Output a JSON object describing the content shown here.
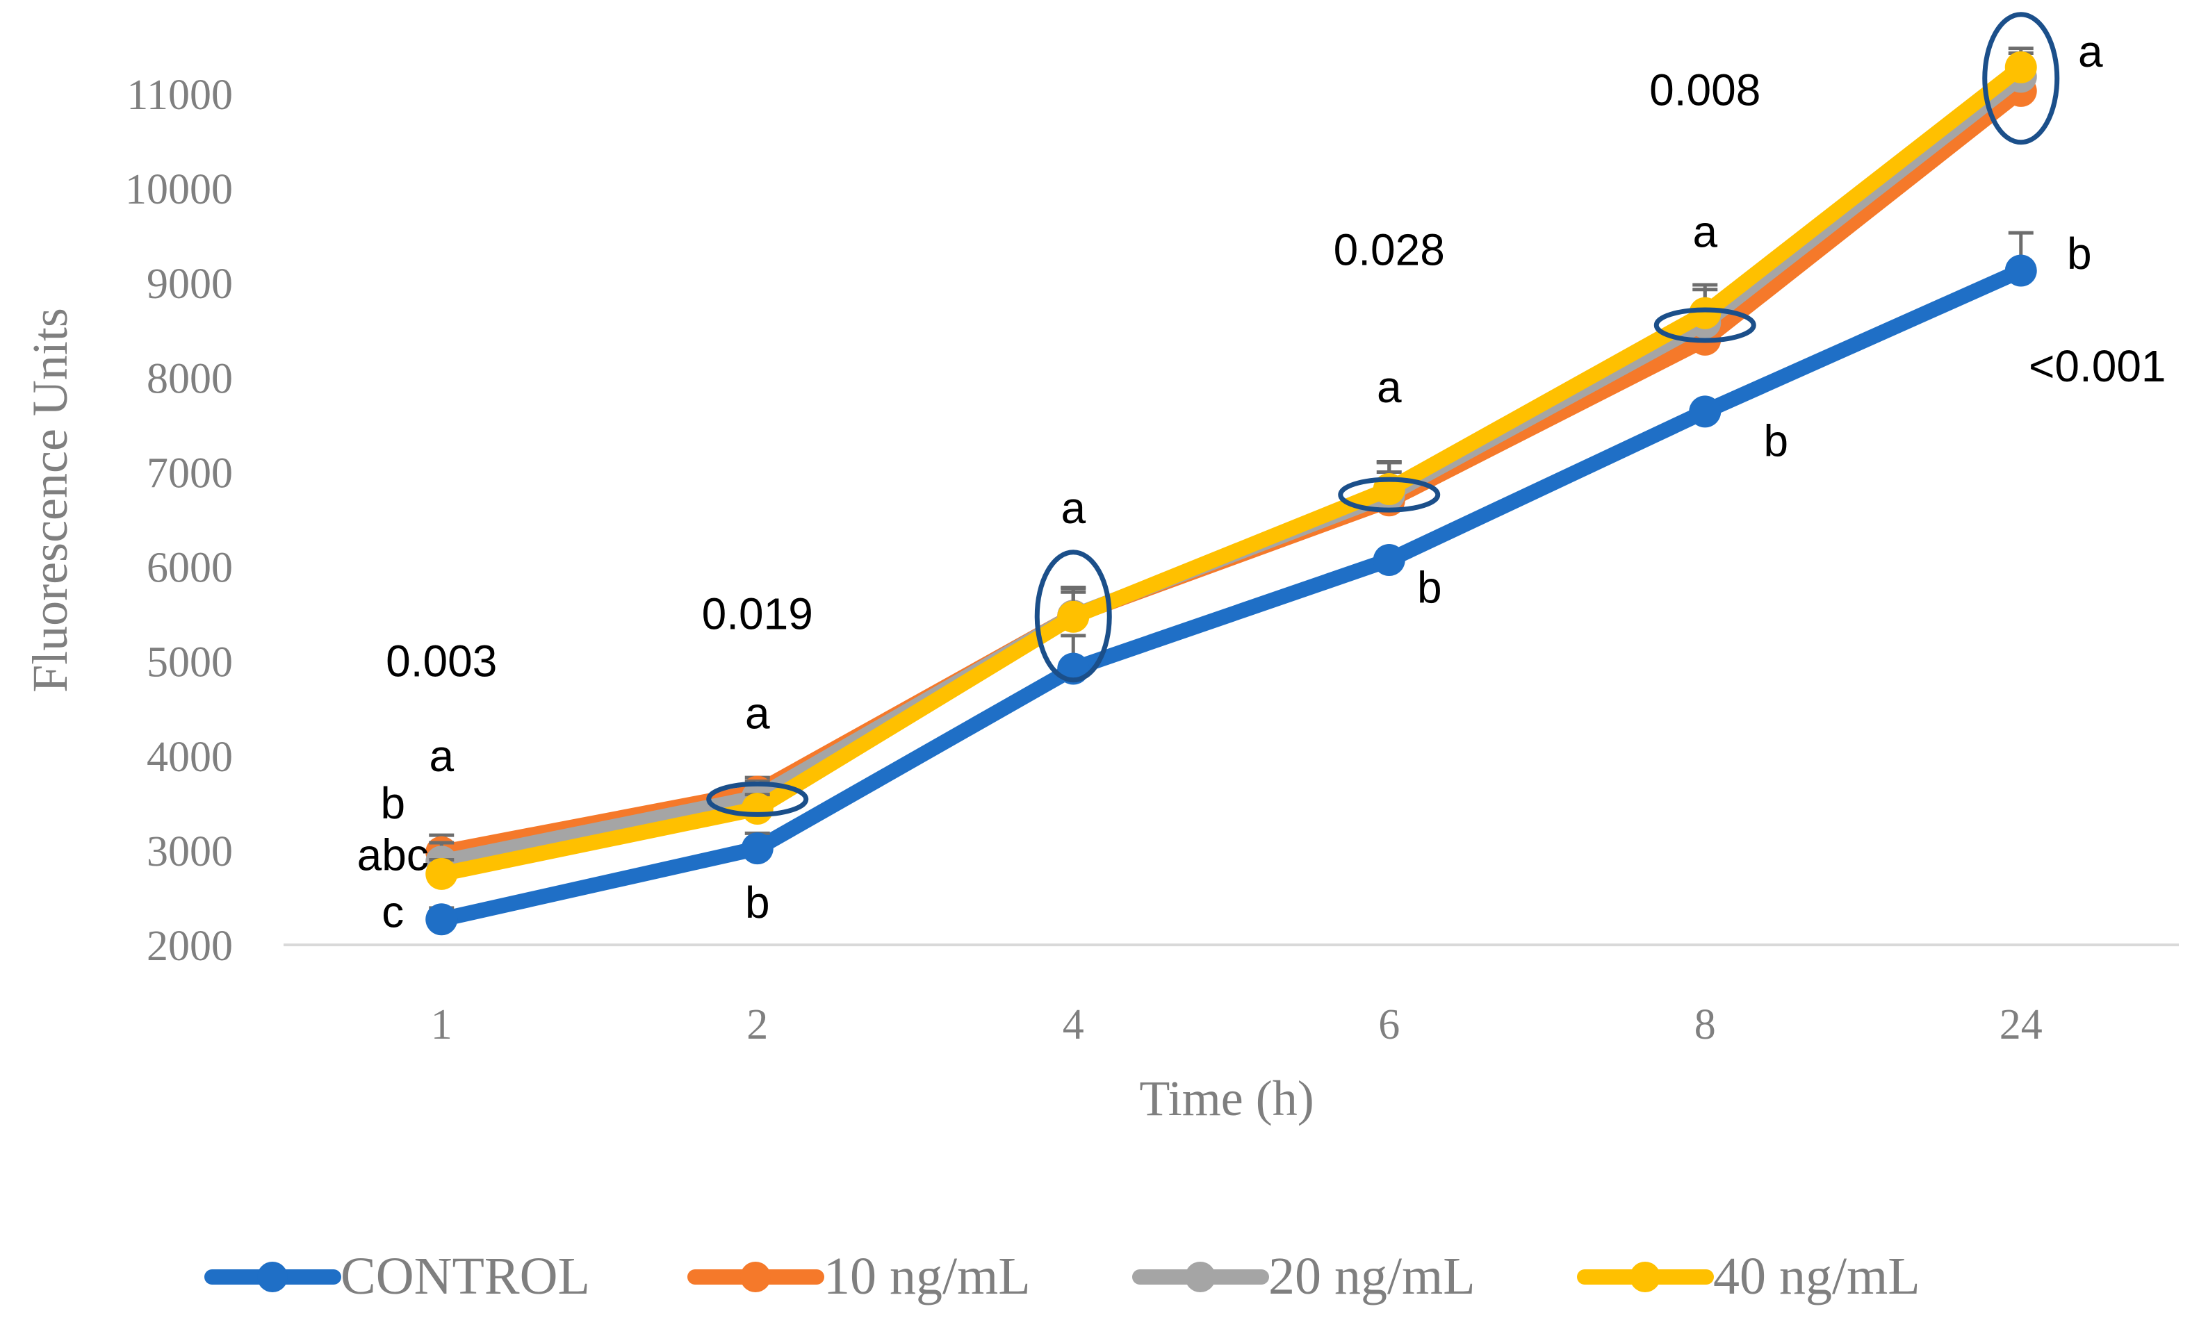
{
  "chart_data": {
    "type": "line",
    "title": "",
    "xlabel": "Time (h)",
    "ylabel": "Fluorescence Units",
    "categories": [
      "1",
      "2",
      "4",
      "6",
      "8",
      "24"
    ],
    "ylim": [
      2000,
      11000
    ],
    "yticks": [
      2000,
      3000,
      4000,
      5000,
      6000,
      7000,
      8000,
      9000,
      10000,
      11000
    ],
    "grid": false,
    "legend_position": "bottom",
    "series": [
      {
        "name": "CONTROL",
        "color": "#1f6fc6",
        "values": [
          2270,
          3020,
          4920,
          6070,
          7640,
          9130
        ],
        "error": [
          120,
          160,
          350,
          0,
          0,
          400
        ]
      },
      {
        "name": "10 ng/mL",
        "color": "#f5792a",
        "values": [
          2980,
          3620,
          5480,
          6700,
          8400,
          11030
        ],
        "error": [
          180,
          150,
          250,
          300,
          300,
          300
        ]
      },
      {
        "name": "20 ng/mL",
        "color": "#a5a5a5",
        "values": [
          2880,
          3560,
          5480,
          6760,
          8580,
          11180
        ],
        "error": [
          200,
          170,
          300,
          350,
          350,
          300
        ]
      },
      {
        "name": "40 ng/mL",
        "color": "#ffc000",
        "values": [
          2750,
          3440,
          5470,
          6820,
          8680,
          11280
        ],
        "error": [
          150,
          150,
          300,
          280,
          300,
          150
        ]
      }
    ],
    "p_values": [
      "0.003",
      "0.019",
      "",
      "0.028",
      "0.008",
      "<0.001"
    ],
    "annotations": [
      {
        "text": "0.003",
        "x": "1",
        "y": 5000
      },
      {
        "text": "a",
        "x": "1",
        "y": 4000
      },
      {
        "text": "b",
        "x": "1",
        "y": 3500
      },
      {
        "text": "abc",
        "x": "1",
        "y": 2950
      },
      {
        "text": "c",
        "x": "1",
        "y": 2350
      },
      {
        "text": "0.019",
        "x": "2",
        "y": 5500
      },
      {
        "text": "a",
        "x": "2",
        "y": 4450
      },
      {
        "text": "b",
        "x": "2",
        "y": 2450
      },
      {
        "text": "a",
        "x": "4",
        "y": 6620
      },
      {
        "text": "0.028",
        "x": "6",
        "y": 9350
      },
      {
        "text": "a",
        "x": "6",
        "y": 7900
      },
      {
        "text": "b",
        "x": "6",
        "y": 5780
      },
      {
        "text": "b",
        "x": "8",
        "y": 7330
      },
      {
        "text": "a",
        "x": "8",
        "y": 9540
      },
      {
        "text": "0.008",
        "x": "8",
        "y": 11040
      },
      {
        "text": "a",
        "x": "24",
        "y": 11450
      },
      {
        "text": "b",
        "x": "24",
        "y": 9310
      },
      {
        "text": "<0.001",
        "x": "24",
        "y": 8120
      }
    ],
    "highlight_ellipses": [
      "2",
      "4",
      "6",
      "8",
      "24"
    ]
  }
}
